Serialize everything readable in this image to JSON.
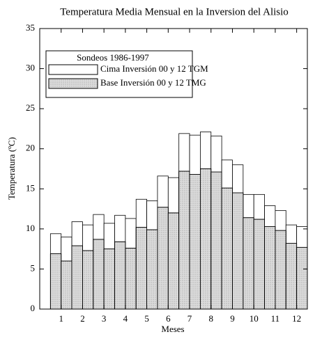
{
  "chart_data": {
    "type": "bar",
    "title": "Temperatura Media Mensual en la Inversion del Alisio",
    "x_label": "Meses",
    "y_label": "Temperatura (ºC)",
    "legend_title": "Sondeos 1986-1997",
    "x": [
      0.75,
      1.25,
      1.75,
      2.25,
      2.75,
      3.25,
      3.75,
      4.25,
      4.75,
      5.25,
      5.75,
      6.25,
      6.75,
      7.25,
      7.75,
      8.25,
      8.75,
      9.25,
      9.75,
      10.25,
      10.75,
      11.25,
      11.75,
      12.25
    ],
    "bar_width": 0.5,
    "series": [
      {
        "name": "Cima Inversión 00 y 12 TGM",
        "color": "#ffffff",
        "values": [
          9.4,
          9.0,
          10.9,
          10.5,
          11.8,
          10.7,
          11.7,
          11.3,
          13.7,
          13.5,
          16.6,
          16.4,
          21.9,
          21.7,
          22.1,
          21.6,
          18.6,
          18.0,
          14.3,
          14.3,
          12.9,
          12.3,
          10.5,
          10.3
        ]
      },
      {
        "name": "Base Inversión  00 y 12 TMG",
        "color": "#dcdcdc",
        "values": [
          6.9,
          6.0,
          7.9,
          7.3,
          8.7,
          7.5,
          8.4,
          7.6,
          10.2,
          9.9,
          12.7,
          12.0,
          17.2,
          16.8,
          17.5,
          17.1,
          15.1,
          14.5,
          11.4,
          11.2,
          10.3,
          9.8,
          8.2,
          7.7
        ]
      }
    ],
    "xlim": [
      0,
      12.5
    ],
    "xticks": [
      1,
      2,
      3,
      4,
      5,
      6,
      7,
      8,
      9,
      10,
      11,
      12
    ],
    "ylim": [
      0,
      35
    ],
    "yticks": [
      0,
      5,
      10,
      15,
      20,
      25,
      30,
      35
    ],
    "grid": false
  }
}
